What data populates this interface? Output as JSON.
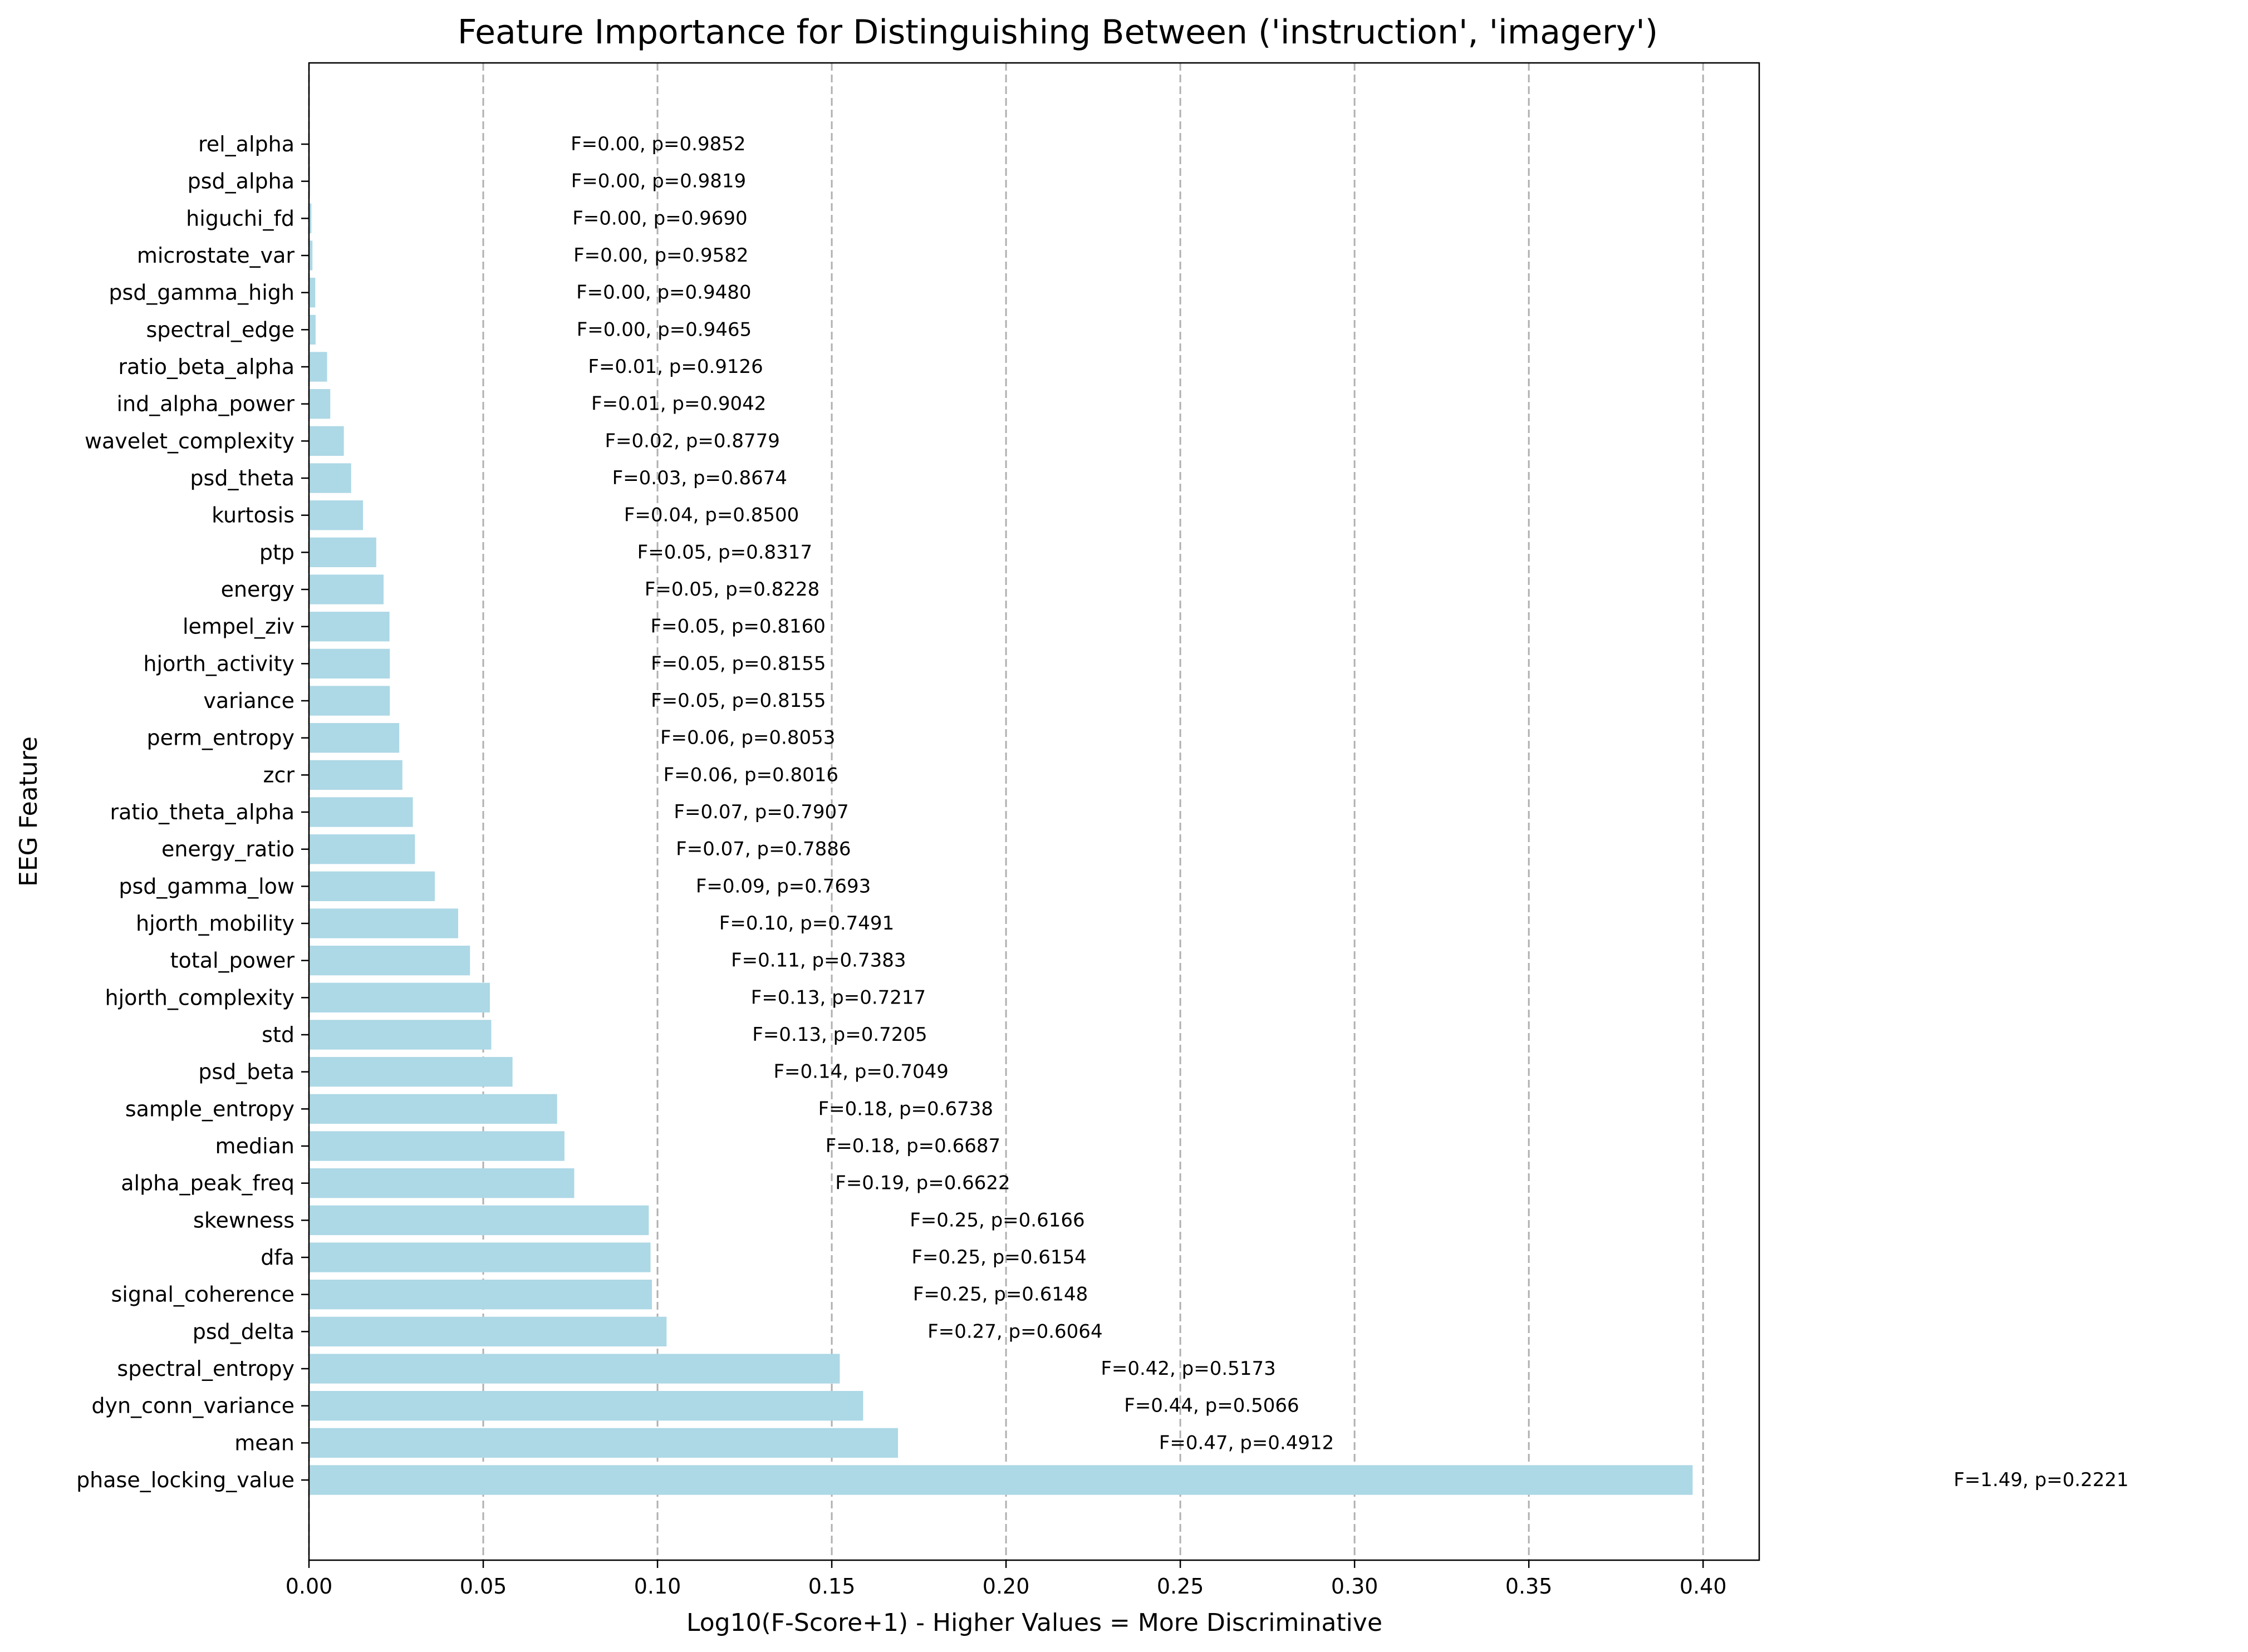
{
  "chart_data": {
    "type": "bar",
    "orientation": "horizontal",
    "title": "Feature Importance for Distinguishing Between ('instruction', 'imagery')",
    "xlabel": "Log10(F-Score+1) - Higher Values = More Discriminative",
    "ylabel": "EEG Feature",
    "xlim": [
      0,
      0.4161
    ],
    "xticks": [
      0.0,
      0.05,
      0.1,
      0.15,
      0.2,
      0.25,
      0.3,
      0.35,
      0.4
    ],
    "xtick_labels": [
      "0.00",
      "0.05",
      "0.10",
      "0.15",
      "0.20",
      "0.25",
      "0.30",
      "0.35",
      "0.40"
    ],
    "grid": {
      "x": true,
      "y": false,
      "style": "dashed"
    },
    "bar_color": "#add8e6",
    "categories": [
      "rel_alpha",
      "psd_alpha",
      "higuchi_fd",
      "microstate_var",
      "psd_gamma_high",
      "spectral_edge",
      "ratio_beta_alpha",
      "ind_alpha_power",
      "wavelet_complexity",
      "psd_theta",
      "kurtosis",
      "ptp",
      "energy",
      "lempel_ziv",
      "hjorth_activity",
      "variance",
      "perm_entropy",
      "zcr",
      "ratio_theta_alpha",
      "energy_ratio",
      "psd_gamma_low",
      "hjorth_mobility",
      "total_power",
      "hjorth_complexity",
      "std",
      "psd_beta",
      "sample_entropy",
      "median",
      "alpha_peak_freq",
      "skewness",
      "dfa",
      "signal_coherence",
      "psd_delta",
      "spectral_entropy",
      "dyn_conn_variance",
      "mean",
      "phase_locking_value"
    ],
    "values": [
      0.0002,
      0.0003,
      0.0007,
      0.001,
      0.0018,
      0.0019,
      0.0052,
      0.0061,
      0.01,
      0.0121,
      0.0155,
      0.0193,
      0.0214,
      0.0231,
      0.0232,
      0.0232,
      0.0259,
      0.0268,
      0.0298,
      0.0304,
      0.0361,
      0.0428,
      0.0462,
      0.0519,
      0.0523,
      0.0584,
      0.0712,
      0.0733,
      0.0761,
      0.0975,
      0.098,
      0.0984,
      0.1026,
      0.1523,
      0.159,
      0.169,
      0.397
    ],
    "annotations": [
      "F=0.00, p=0.9852",
      "F=0.00, p=0.9819",
      "F=0.00, p=0.9690",
      "F=0.00, p=0.9582",
      "F=0.00, p=0.9480",
      "F=0.00, p=0.9465",
      "F=0.01, p=0.9126",
      "F=0.01, p=0.9042",
      "F=0.02, p=0.8779",
      "F=0.03, p=0.8674",
      "F=0.04, p=0.8500",
      "F=0.05, p=0.8317",
      "F=0.05, p=0.8228",
      "F=0.05, p=0.8160",
      "F=0.05, p=0.8155",
      "F=0.05, p=0.8155",
      "F=0.06, p=0.8053",
      "F=0.06, p=0.8016",
      "F=0.07, p=0.7907",
      "F=0.07, p=0.7886",
      "F=0.09, p=0.7693",
      "F=0.10, p=0.7491",
      "F=0.11, p=0.7383",
      "F=0.13, p=0.7217",
      "F=0.13, p=0.7205",
      "F=0.14, p=0.7049",
      "F=0.18, p=0.6738",
      "F=0.18, p=0.6687",
      "F=0.19, p=0.6622",
      "F=0.25, p=0.6166",
      "F=0.25, p=0.6154",
      "F=0.25, p=0.6148",
      "F=0.27, p=0.6064",
      "F=0.42, p=0.5173",
      "F=0.44, p=0.5066",
      "F=0.47, p=0.4912",
      "F=1.49, p=0.2221"
    ]
  }
}
